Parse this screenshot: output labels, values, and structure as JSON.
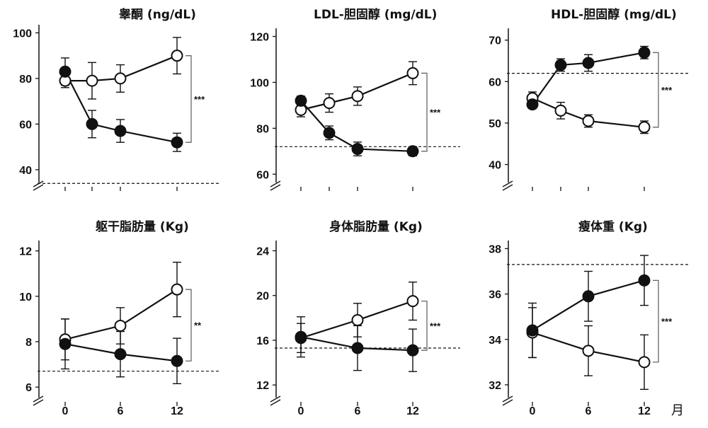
{
  "figure": {
    "x_unit_label": "月",
    "shared_x_ticks": [
      "0",
      "6",
      "12"
    ]
  },
  "chart_data": [
    {
      "type": "line",
      "title": "睾酮 (ng/dL)",
      "x": [
        0,
        3,
        6,
        12
      ],
      "x_ticks": [
        0,
        6,
        12
      ],
      "ylim": [
        35,
        102
      ],
      "y_ticks": [
        40,
        60,
        80,
        100
      ],
      "reference_line": 34,
      "series": [
        {
          "marker": "open",
          "values": [
            79,
            79,
            80,
            90
          ],
          "errors": [
            3,
            8,
            6,
            8
          ]
        },
        {
          "marker": "filled",
          "values": [
            83,
            60,
            57,
            52
          ],
          "errors": [
            6,
            6,
            5,
            4
          ]
        }
      ],
      "significance": "***"
    },
    {
      "type": "line",
      "title": "LDL-胆固醇 (mg/dL)",
      "x": [
        0,
        3,
        6,
        12
      ],
      "x_ticks": [
        0,
        6,
        12
      ],
      "ylim": [
        57,
        122
      ],
      "y_ticks": [
        60,
        80,
        100,
        120
      ],
      "reference_line": 72,
      "series": [
        {
          "marker": "open",
          "values": [
            88,
            91,
            94,
            104
          ],
          "errors": [
            3,
            4,
            4,
            5
          ]
        },
        {
          "marker": "filled",
          "values": [
            92,
            78,
            71,
            70
          ],
          "errors": [
            2,
            3,
            3,
            2
          ]
        }
      ],
      "significance": "***"
    },
    {
      "type": "line",
      "title": "HDL-胆固醇 (mg/dL)",
      "x": [
        0,
        3,
        6,
        12
      ],
      "x_ticks": [
        0,
        6,
        12
      ],
      "ylim": [
        36,
        72
      ],
      "y_ticks": [
        40,
        50,
        60,
        70
      ],
      "reference_line": 62,
      "series": [
        {
          "marker": "open",
          "values": [
            56,
            53,
            50.5,
            49
          ],
          "errors": [
            1.5,
            2,
            1.5,
            1.5
          ]
        },
        {
          "marker": "filled",
          "values": [
            54.5,
            64,
            64.5,
            67
          ],
          "errors": [
            1,
            1.5,
            2,
            1.5
          ]
        }
      ],
      "significance": "***"
    },
    {
      "type": "line",
      "title": "躯干脂肪量 (Kg)",
      "x": [
        0,
        6,
        12
      ],
      "x_ticks": [
        0,
        6,
        12
      ],
      "ylim": [
        5.6,
        12.3
      ],
      "y_ticks": [
        6,
        8,
        10,
        12
      ],
      "reference_line": 6.7,
      "series": [
        {
          "marker": "open",
          "values": [
            8.1,
            8.7,
            10.3
          ],
          "errors": [
            0.9,
            0.8,
            1.2
          ]
        },
        {
          "marker": "filled",
          "values": [
            7.9,
            7.45,
            7.15
          ],
          "errors": [
            1.1,
            1.0,
            1.0
          ]
        }
      ],
      "significance": "**"
    },
    {
      "type": "line",
      "title": "身体脂肪量 (Kg)",
      "x": [
        0,
        6,
        12
      ],
      "x_ticks": [
        0,
        6,
        12
      ],
      "ylim": [
        11,
        24.6
      ],
      "y_ticks": [
        12,
        16,
        20,
        24
      ],
      "reference_line": 15.3,
      "series": [
        {
          "marker": "open",
          "values": [
            16.2,
            17.8,
            19.5
          ],
          "errors": [
            1.3,
            1.5,
            1.7
          ]
        },
        {
          "marker": "filled",
          "values": [
            16.3,
            15.3,
            15.1
          ],
          "errors": [
            1.8,
            2.0,
            1.9
          ]
        }
      ],
      "significance": "***"
    },
    {
      "type": "line",
      "title": "瘦体重 (Kg)",
      "x": [
        0,
        6,
        12
      ],
      "x_ticks": [
        0,
        6,
        12
      ],
      "ylim": [
        31.5,
        38.2
      ],
      "y_ticks": [
        32,
        34,
        36,
        38
      ],
      "reference_line": 37.3,
      "series": [
        {
          "marker": "open",
          "values": [
            34.3,
            33.5,
            33
          ],
          "errors": [
            1.1,
            1.1,
            1.2
          ]
        },
        {
          "marker": "filled",
          "values": [
            34.4,
            35.9,
            36.6
          ],
          "errors": [
            1.2,
            1.1,
            1.1
          ]
        }
      ],
      "significance": "***"
    }
  ]
}
